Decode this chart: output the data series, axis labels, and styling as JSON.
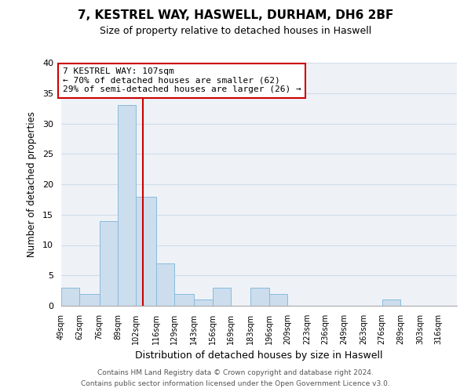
{
  "title": "7, KESTREL WAY, HASWELL, DURHAM, DH6 2BF",
  "subtitle": "Size of property relative to detached houses in Haswell",
  "xlabel": "Distribution of detached houses by size in Haswell",
  "ylabel": "Number of detached properties",
  "bar_edges": [
    49,
    62,
    76,
    89,
    102,
    116,
    129,
    143,
    156,
    169,
    183,
    196,
    209,
    223,
    236,
    249,
    263,
    276,
    289,
    303,
    316
  ],
  "bar_heights": [
    3,
    2,
    14,
    33,
    18,
    7,
    2,
    1,
    3,
    0,
    3,
    2,
    0,
    0,
    0,
    0,
    0,
    1,
    0,
    0,
    0
  ],
  "bar_color": "#ccdded",
  "bar_edgecolor": "#88bbdd",
  "property_line_x": 107,
  "property_line_color": "#cc0000",
  "annotation_line1": "7 KESTREL WAY: 107sqm",
  "annotation_line2": "← 70% of detached houses are smaller (62)",
  "annotation_line3": "29% of semi-detached houses are larger (26) →",
  "annotation_box_facecolor": "white",
  "annotation_box_edgecolor": "#cc0000",
  "ylim": [
    0,
    40
  ],
  "yticks": [
    0,
    5,
    10,
    15,
    20,
    25,
    30,
    35,
    40
  ],
  "grid_color": "#d0dce8",
  "background_color": "#eef2f7",
  "footnote1": "Contains HM Land Registry data © Crown copyright and database right 2024.",
  "footnote2": "Contains public sector information licensed under the Open Government Licence v3.0.",
  "tick_labels": [
    "49sqm",
    "62sqm",
    "76sqm",
    "89sqm",
    "102sqm",
    "116sqm",
    "129sqm",
    "143sqm",
    "156sqm",
    "169sqm",
    "183sqm",
    "196sqm",
    "209sqm",
    "223sqm",
    "236sqm",
    "249sqm",
    "263sqm",
    "276sqm",
    "289sqm",
    "303sqm",
    "316sqm"
  ]
}
